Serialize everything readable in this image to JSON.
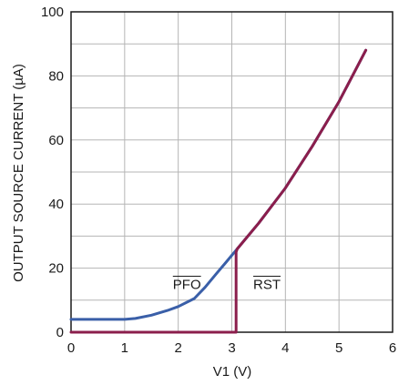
{
  "chart_data": {
    "type": "line",
    "title": "",
    "xlabel": "V1 (V)",
    "ylabel": "OUTPUT SOURCE CURRENT (µA)",
    "xlim": [
      0,
      6
    ],
    "ylim": [
      0,
      100
    ],
    "x_ticks": [
      "0",
      "1",
      "2",
      "3",
      "4",
      "5",
      "6"
    ],
    "y_ticks": [
      "0",
      "20",
      "40",
      "60",
      "80",
      "100"
    ],
    "grid": true,
    "annotations": [
      {
        "text": "PFO",
        "overline": true,
        "x": 1.9,
        "y": 13.5
      },
      {
        "text": "RST",
        "overline": true,
        "x": 3.4,
        "y": 13.5
      }
    ],
    "series": [
      {
        "name": "PFO",
        "color": "#3a5fa8",
        "x": [
          0,
          0.5,
          1.0,
          1.2,
          1.5,
          1.8,
          2.0,
          2.3,
          2.5,
          2.7,
          2.9,
          3.0,
          3.1,
          3.5,
          4.0,
          4.5,
          5.0,
          5.5
        ],
        "y": [
          4,
          4,
          4,
          4.3,
          5.3,
          6.8,
          8,
          10.5,
          14,
          18,
          22,
          24,
          26,
          34,
          45,
          58,
          72,
          88
        ]
      },
      {
        "name": "RST",
        "color": "#8b1e4c",
        "x": [
          0,
          3.08,
          3.08,
          3.1,
          3.5,
          4.0,
          4.5,
          5.0,
          5.5
        ],
        "y": [
          0,
          0,
          25,
          26,
          34,
          45,
          58,
          72,
          88
        ]
      }
    ]
  }
}
